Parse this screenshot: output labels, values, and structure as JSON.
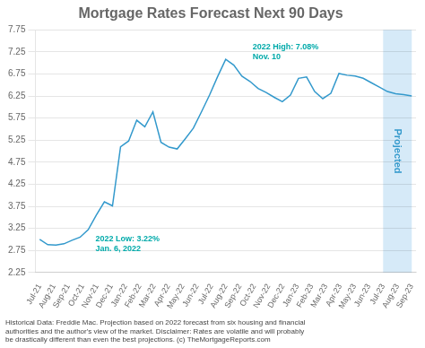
{
  "chart_data": {
    "type": "line",
    "title": "Mortgage Rates Forecast Next 90 Days",
    "footnote": "Historical Data: Freddie Mac. Projection based on 2022 forecast from six housing and financial\nauthorities and the author's view of the market. Disclaimer: Rates are volatile and will probably\nbe drastically different than even the best projections. (c) TheMortgageReports.com",
    "x": [
      0,
      0.565217,
      1.130435,
      1.695652,
      2.26087,
      2.826087,
      3.391304,
      3.956522,
      4.521739,
      5.086957,
      5.652174,
      6.217391,
      6.782609,
      7.347826,
      7.913043,
      8.478261,
      9.043478,
      9.608696,
      10.173913,
      10.73913,
      11.304348,
      11.869565,
      12.434783,
      13,
      13.565217,
      14.130435,
      14.695652,
      15.26087,
      15.826087,
      16.391304,
      16.956522,
      17.521739,
      18.086957,
      18.652174,
      19.217391,
      19.782609,
      20.347826,
      20.913043,
      21.478261,
      22.043478,
      22.608696,
      23.173913,
      23.73913,
      24.304348,
      24.869565,
      25.434783,
      26
    ],
    "values": [
      3.0,
      2.88,
      2.87,
      2.9,
      2.98,
      3.05,
      3.22,
      3.55,
      3.85,
      3.76,
      5.1,
      5.23,
      5.7,
      5.55,
      5.89,
      5.2,
      5.09,
      5.05,
      5.28,
      5.52,
      5.89,
      6.27,
      6.69,
      7.08,
      6.95,
      6.7,
      6.58,
      6.42,
      6.33,
      6.22,
      6.12,
      6.27,
      6.65,
      6.68,
      6.35,
      6.19,
      6.31,
      6.76,
      6.72,
      6.7,
      6.65,
      6.55,
      6.45,
      6.35,
      6.3,
      6.28,
      6.25
    ],
    "color": "#3399cc",
    "xlim": [
      -0.3,
      26.3
    ],
    "xticks": [
      {
        "value": 0,
        "label": "Jul-21"
      },
      {
        "value": 1,
        "label": "Aug-21"
      },
      {
        "value": 2,
        "label": "Sep-21"
      },
      {
        "value": 3,
        "label": "Oct-21"
      },
      {
        "value": 4,
        "label": "Nov-21"
      },
      {
        "value": 5,
        "label": "Dec-21"
      },
      {
        "value": 6,
        "label": "Jan-22"
      },
      {
        "value": 7,
        "label": "Feb-22"
      },
      {
        "value": 8,
        "label": "Mar-22"
      },
      {
        "value": 9,
        "label": "Apr-22"
      },
      {
        "value": 10,
        "label": "May-22"
      },
      {
        "value": 11,
        "label": "Jun-22"
      },
      {
        "value": 12,
        "label": "Jul-22"
      },
      {
        "value": 13,
        "label": "Aug-22"
      },
      {
        "value": 14,
        "label": "Sep-22"
      },
      {
        "value": 15,
        "label": "Oct-22"
      },
      {
        "value": 16,
        "label": "Nov-22"
      },
      {
        "value": 17,
        "label": "Dec-22"
      },
      {
        "value": 18,
        "label": "Jan-23"
      },
      {
        "value": 19,
        "label": "Feb-23"
      },
      {
        "value": 20,
        "label": "Mar-23"
      },
      {
        "value": 21,
        "label": "Apr-23"
      },
      {
        "value": 22,
        "label": "May-23"
      },
      {
        "value": 23,
        "label": "Jun-23"
      },
      {
        "value": 24,
        "label": "Jul-23"
      },
      {
        "value": 25,
        "label": "Aug-23"
      },
      {
        "value": 26,
        "label": "Sep-23"
      }
    ],
    "ylim": [
      2.25,
      7.75
    ],
    "yticks": [
      2.25,
      2.75,
      3.25,
      3.75,
      4.25,
      4.75,
      5.25,
      5.75,
      6.25,
      6.75,
      7.25,
      7.75
    ],
    "grid": true,
    "annotations": [
      {
        "text": "2022 Low: 3.22%\nJan. 6, 2022",
        "x": 3.391304,
        "y": 3.22,
        "color": "#00aaaa"
      },
      {
        "text": "2022 High: 7.08%\nNov. 10",
        "x": 13,
        "y": 7.08,
        "color": "#00aaaa"
      }
    ],
    "shaded_range": {
      "x": [
        24,
        26
      ],
      "label": "Projected",
      "color": "#d6eaf8"
    }
  }
}
